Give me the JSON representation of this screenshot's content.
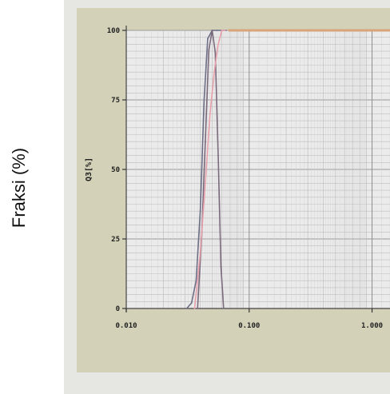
{
  "outer_label": "Fraksi (%)",
  "chart_data": {
    "type": "line",
    "ylabel": "Q3[%]",
    "x_scale": "log",
    "xlim": [
      0.01,
      1.4
    ],
    "ylim": [
      0,
      100
    ],
    "x_ticks": [
      "0.010",
      "0.100",
      "1.000"
    ],
    "y_ticks": [
      "0",
      "25",
      "50",
      "75",
      "100"
    ],
    "grid": true,
    "series": [
      {
        "color": "#6e6e86",
        "x": [
          0.031,
          0.034,
          0.037,
          0.04,
          0.043,
          0.046,
          0.05,
          0.055,
          0.06,
          0.065
        ],
        "y": [
          0,
          2,
          10,
          35,
          75,
          97,
          100,
          100,
          100,
          100
        ]
      },
      {
        "color": "#7a6a7c",
        "x": [
          0.038,
          0.041,
          0.044,
          0.047,
          0.05,
          0.053,
          0.056,
          0.059,
          0.062
        ],
        "y": [
          0,
          25,
          60,
          93,
          100,
          92,
          55,
          15,
          0
        ]
      },
      {
        "color": "#e7a1ac",
        "x": [
          0.036,
          0.04,
          0.044,
          0.048,
          0.052,
          0.056,
          0.06,
          0.064
        ],
        "y": [
          0,
          20,
          45,
          70,
          85,
          95,
          100,
          100
        ]
      },
      {
        "color": "#d8a47a",
        "x": [
          0.068,
          0.1,
          0.5,
          1.0,
          1.4
        ],
        "y": [
          100,
          100,
          100,
          100,
          100
        ]
      }
    ]
  }
}
